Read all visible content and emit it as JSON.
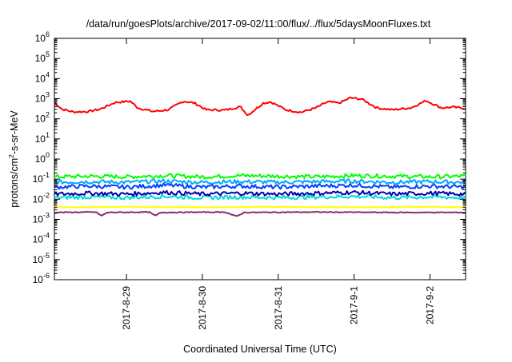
{
  "chart_data": {
    "type": "line",
    "title": "/data/run/goesPlots/archive/2017-09-02/11:00/flux/../flux/5daysMoonFluxes.txt",
    "xlabel": "Coordinated Universal Time (UTC)",
    "ylabel": {
      "base": "protons/cm",
      "sup": "2",
      "rest": "-s-sr-MeV"
    },
    "y_scale": "log",
    "ylim_exp": [
      -6,
      6
    ],
    "y_ticks": [
      {
        "exp": -6,
        "label_base": "10",
        "label_exp": "-6"
      },
      {
        "exp": -5,
        "label_base": "10",
        "label_exp": "-5"
      },
      {
        "exp": -4,
        "label_base": "10",
        "label_exp": "-4"
      },
      {
        "exp": -3,
        "label_base": "10",
        "label_exp": "-3"
      },
      {
        "exp": -2,
        "label_base": "10",
        "label_exp": "-2"
      },
      {
        "exp": -1,
        "label_base": "10",
        "label_exp": "-1"
      },
      {
        "exp": 0,
        "label_base": "10",
        "label_exp": "0"
      },
      {
        "exp": 1,
        "label_base": "10",
        "label_exp": "1"
      },
      {
        "exp": 2,
        "label_base": "10",
        "label_exp": "2"
      },
      {
        "exp": 3,
        "label_base": "10",
        "label_exp": "3"
      },
      {
        "exp": 4,
        "label_base": "10",
        "label_exp": "4"
      },
      {
        "exp": 5,
        "label_base": "10",
        "label_exp": "5"
      },
      {
        "exp": 6,
        "label_base": "10",
        "label_exp": "6"
      }
    ],
    "xlim_days": [
      28.05,
      33.47
    ],
    "x_ticks": [
      {
        "day": 29,
        "label": "2017-8-29"
      },
      {
        "day": 30,
        "label": "2017-8-30"
      },
      {
        "day": 31,
        "label": "2017-8-31"
      },
      {
        "day": 32,
        "label": "2017-9-1"
      },
      {
        "day": 33,
        "label": "2017-9-2"
      }
    ],
    "grid": false,
    "series": [
      {
        "color": "#ff0000",
        "points": [
          [
            28.05,
            650
          ],
          [
            28.15,
            300
          ],
          [
            28.3,
            220
          ],
          [
            28.5,
            230
          ],
          [
            28.65,
            300
          ],
          [
            28.85,
            650
          ],
          [
            29.05,
            750
          ],
          [
            29.15,
            350
          ],
          [
            29.35,
            230
          ],
          [
            29.55,
            280
          ],
          [
            29.75,
            750
          ],
          [
            29.9,
            600
          ],
          [
            30.05,
            280
          ],
          [
            30.3,
            270
          ],
          [
            30.5,
            400
          ],
          [
            30.6,
            150
          ],
          [
            30.8,
            600
          ],
          [
            30.9,
            700
          ],
          [
            31.1,
            280
          ],
          [
            31.3,
            210
          ],
          [
            31.5,
            350
          ],
          [
            31.65,
            700
          ],
          [
            31.8,
            600
          ],
          [
            31.95,
            1100
          ],
          [
            32.1,
            950
          ],
          [
            32.3,
            350
          ],
          [
            32.5,
            280
          ],
          [
            32.75,
            350
          ],
          [
            32.95,
            800
          ],
          [
            33.15,
            350
          ],
          [
            33.3,
            380
          ],
          [
            33.47,
            330
          ]
        ]
      },
      {
        "color": "#00ff00",
        "points": [
          [
            28.05,
            0.13
          ],
          [
            28.5,
            0.14
          ],
          [
            29.0,
            0.13
          ],
          [
            29.5,
            0.15
          ],
          [
            30.0,
            0.13
          ],
          [
            30.5,
            0.15
          ],
          [
            31.0,
            0.14
          ],
          [
            31.5,
            0.13
          ],
          [
            32.0,
            0.15
          ],
          [
            32.5,
            0.14
          ],
          [
            33.0,
            0.13
          ],
          [
            33.47,
            0.14
          ]
        ]
      },
      {
        "color": "#00a8ff",
        "points": [
          [
            28.05,
            0.07
          ],
          [
            28.5,
            0.075
          ],
          [
            29.0,
            0.07
          ],
          [
            29.5,
            0.08
          ],
          [
            30.0,
            0.07
          ],
          [
            30.5,
            0.075
          ],
          [
            31.0,
            0.07
          ],
          [
            31.5,
            0.075
          ],
          [
            32.0,
            0.08
          ],
          [
            32.5,
            0.07
          ],
          [
            33.0,
            0.075
          ],
          [
            33.47,
            0.07
          ]
        ]
      },
      {
        "color": "#0040ff",
        "points": [
          [
            28.05,
            0.04
          ],
          [
            28.5,
            0.045
          ],
          [
            29.0,
            0.04
          ],
          [
            29.5,
            0.05
          ],
          [
            30.0,
            0.04
          ],
          [
            30.5,
            0.045
          ],
          [
            31.0,
            0.04
          ],
          [
            31.5,
            0.045
          ],
          [
            32.0,
            0.05
          ],
          [
            32.5,
            0.04
          ],
          [
            33.0,
            0.045
          ],
          [
            33.47,
            0.04
          ]
        ]
      },
      {
        "color": "#00d8d8",
        "points": [
          [
            28.05,
            0.012
          ],
          [
            28.5,
            0.013
          ],
          [
            29.0,
            0.012
          ],
          [
            29.5,
            0.014
          ],
          [
            30.0,
            0.012
          ],
          [
            30.5,
            0.013
          ],
          [
            31.0,
            0.012
          ],
          [
            31.5,
            0.013
          ],
          [
            32.0,
            0.014
          ],
          [
            32.5,
            0.012
          ],
          [
            33.0,
            0.013
          ],
          [
            33.47,
            0.012
          ]
        ]
      },
      {
        "color": "#0000b0",
        "points": [
          [
            28.05,
            0.018
          ],
          [
            28.5,
            0.02
          ],
          [
            29.0,
            0.018
          ],
          [
            29.5,
            0.022
          ],
          [
            30.0,
            0.018
          ],
          [
            30.5,
            0.02
          ],
          [
            31.0,
            0.018
          ],
          [
            31.5,
            0.02
          ],
          [
            32.0,
            0.022
          ],
          [
            32.5,
            0.018
          ],
          [
            33.0,
            0.02
          ],
          [
            33.47,
            0.018
          ]
        ]
      },
      {
        "color": "#ffff00",
        "points": [
          [
            28.05,
            0.004
          ],
          [
            29.0,
            0.0042
          ],
          [
            30.0,
            0.004
          ],
          [
            31.0,
            0.0042
          ],
          [
            32.0,
            0.004
          ],
          [
            33.0,
            0.0042
          ],
          [
            33.47,
            0.004
          ]
        ]
      },
      {
        "color": "#803070",
        "points": [
          [
            28.05,
            0.0022
          ],
          [
            28.6,
            0.0023
          ],
          [
            28.67,
            0.0015
          ],
          [
            28.75,
            0.0022
          ],
          [
            29.3,
            0.0023
          ],
          [
            29.38,
            0.0015
          ],
          [
            29.45,
            0.0022
          ],
          [
            30.3,
            0.0023
          ],
          [
            30.45,
            0.0014
          ],
          [
            30.55,
            0.0022
          ],
          [
            31.5,
            0.0023
          ],
          [
            32.5,
            0.0022
          ],
          [
            33.47,
            0.0022
          ]
        ]
      }
    ]
  }
}
